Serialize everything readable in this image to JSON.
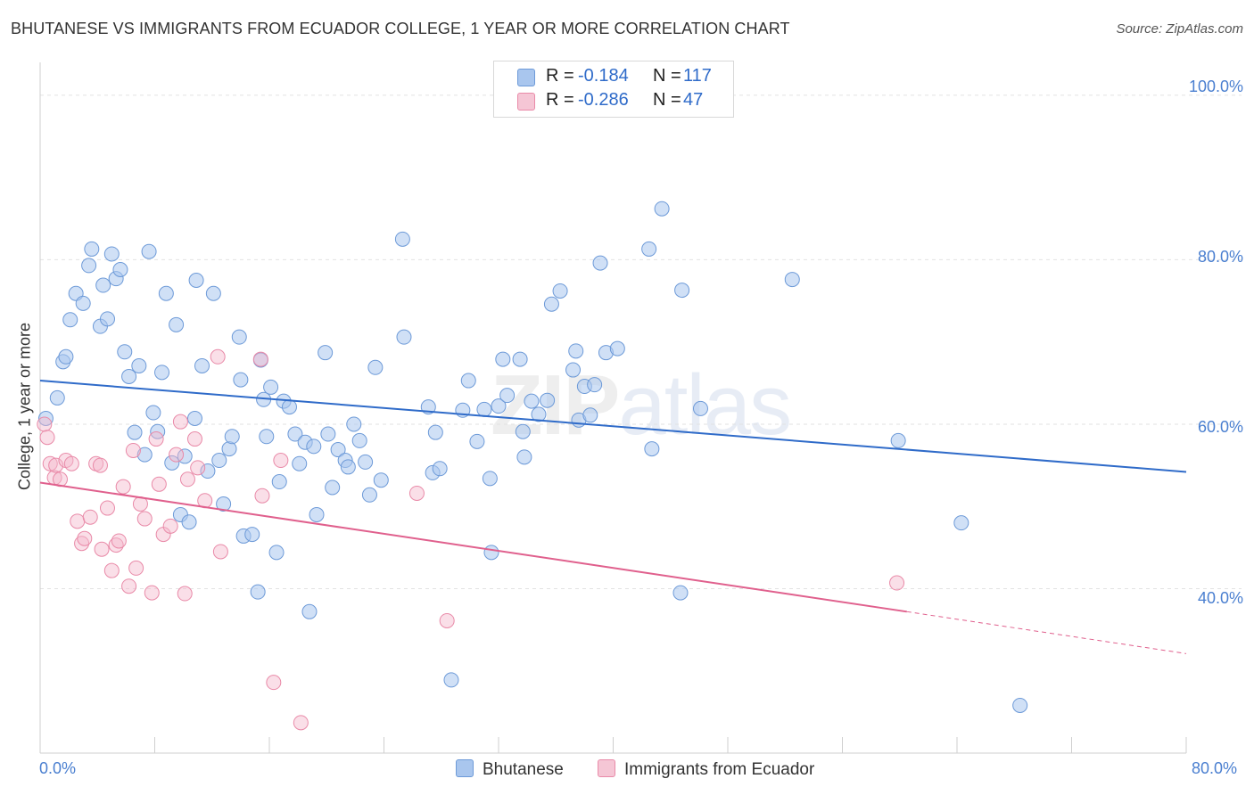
{
  "title": "BHUTANESE VS IMMIGRANTS FROM ECUADOR COLLEGE, 1 YEAR OR MORE CORRELATION CHART",
  "source": "Source: ZipAtlas.com",
  "watermark": {
    "zip": "ZIP",
    "atlas": "atlas"
  },
  "legend_top": {
    "rows": [
      {
        "r_label": "R =",
        "r_value": "-0.184",
        "n_label": "N =",
        "n_value": "117",
        "color": "#a9c6ee"
      },
      {
        "r_label": "R =",
        "r_value": "-0.286",
        "n_label": "N =",
        "n_value": "47",
        "color": "#f5b8cb"
      }
    ]
  },
  "legend_bottom": {
    "items": [
      {
        "label": "Bhutanese",
        "color": "#a9c6ee"
      },
      {
        "label": "Immigrants from Ecuador",
        "color": "#f5b8cb"
      }
    ]
  },
  "chart_data": {
    "type": "scatter",
    "title": "BHUTANESE VS IMMIGRANTS FROM ECUADOR COLLEGE, 1 YEAR OR MORE CORRELATION CHART",
    "xlabel": "",
    "ylabel": "College, 1 year or more",
    "xlim": [
      0,
      80
    ],
    "ylim": [
      20,
      104
    ],
    "x_tick_labels": [
      "0.0%",
      "80.0%"
    ],
    "y_ticks": [
      40,
      60,
      80,
      100
    ],
    "y_tick_labels": [
      "40.0%",
      "60.0%",
      "80.0%",
      "100.0%"
    ],
    "grid": true,
    "legend_position": "top-center",
    "colors": {
      "blue_fill": "#a9c6ee",
      "blue_stroke": "#6d9ad8",
      "blue_line": "#2f6bc9",
      "pink_fill": "#f5b8cb",
      "pink_stroke": "#e98aa8",
      "pink_line": "#e0608d"
    },
    "series": [
      {
        "name": "Bhutanese",
        "trend": {
          "x": [
            0,
            80
          ],
          "y": [
            65.3,
            54.2
          ]
        },
        "points": [
          [
            0.4,
            60.7
          ],
          [
            1.2,
            63.2
          ],
          [
            1.6,
            67.6
          ],
          [
            1.8,
            68.2
          ],
          [
            2.1,
            72.7
          ],
          [
            2.5,
            75.9
          ],
          [
            3.0,
            74.7
          ],
          [
            3.4,
            79.3
          ],
          [
            3.6,
            81.3
          ],
          [
            4.2,
            71.9
          ],
          [
            4.4,
            76.9
          ],
          [
            4.7,
            72.8
          ],
          [
            5.0,
            80.7
          ],
          [
            5.3,
            77.7
          ],
          [
            5.6,
            78.8
          ],
          [
            5.9,
            68.8
          ],
          [
            6.2,
            65.8
          ],
          [
            6.6,
            59.0
          ],
          [
            6.9,
            67.1
          ],
          [
            7.3,
            56.3
          ],
          [
            7.6,
            81.0
          ],
          [
            7.9,
            61.4
          ],
          [
            8.2,
            59.1
          ],
          [
            8.5,
            66.3
          ],
          [
            8.8,
            75.9
          ],
          [
            9.2,
            55.3
          ],
          [
            9.5,
            72.1
          ],
          [
            9.8,
            49.0
          ],
          [
            10.1,
            56.1
          ],
          [
            10.4,
            48.1
          ],
          [
            10.8,
            60.7
          ],
          [
            10.9,
            77.5
          ],
          [
            11.3,
            67.1
          ],
          [
            11.7,
            54.3
          ],
          [
            12.1,
            75.9
          ],
          [
            12.5,
            55.6
          ],
          [
            12.8,
            50.3
          ],
          [
            13.2,
            57.0
          ],
          [
            13.4,
            58.5
          ],
          [
            13.9,
            70.6
          ],
          [
            14.0,
            65.4
          ],
          [
            14.2,
            46.4
          ],
          [
            14.8,
            46.6
          ],
          [
            15.2,
            39.6
          ],
          [
            15.4,
            67.8
          ],
          [
            15.6,
            63.0
          ],
          [
            15.8,
            58.5
          ],
          [
            16.1,
            64.5
          ],
          [
            16.5,
            44.4
          ],
          [
            16.7,
            53.0
          ],
          [
            17.0,
            62.8
          ],
          [
            17.4,
            62.1
          ],
          [
            17.8,
            58.8
          ],
          [
            18.1,
            55.2
          ],
          [
            18.5,
            57.8
          ],
          [
            18.8,
            37.2
          ],
          [
            19.1,
            57.3
          ],
          [
            19.3,
            49.0
          ],
          [
            19.9,
            68.7
          ],
          [
            20.1,
            58.8
          ],
          [
            20.4,
            52.3
          ],
          [
            20.8,
            56.9
          ],
          [
            21.3,
            55.6
          ],
          [
            21.5,
            54.8
          ],
          [
            21.9,
            60.0
          ],
          [
            22.3,
            58.0
          ],
          [
            22.7,
            55.4
          ],
          [
            23.0,
            51.4
          ],
          [
            23.4,
            66.9
          ],
          [
            23.8,
            53.2
          ],
          [
            25.3,
            82.5
          ],
          [
            25.4,
            70.6
          ],
          [
            27.1,
            62.1
          ],
          [
            27.4,
            54.1
          ],
          [
            27.6,
            59.0
          ],
          [
            27.9,
            54.6
          ],
          [
            28.7,
            28.9
          ],
          [
            29.5,
            61.7
          ],
          [
            29.9,
            65.3
          ],
          [
            30.5,
            57.9
          ],
          [
            31.0,
            61.8
          ],
          [
            31.4,
            53.4
          ],
          [
            31.5,
            44.4
          ],
          [
            32.0,
            62.2
          ],
          [
            32.3,
            67.9
          ],
          [
            32.6,
            63.5
          ],
          [
            33.5,
            67.9
          ],
          [
            33.7,
            59.1
          ],
          [
            33.8,
            56.0
          ],
          [
            34.3,
            62.8
          ],
          [
            34.8,
            61.2
          ],
          [
            35.4,
            62.9
          ],
          [
            35.7,
            74.6
          ],
          [
            36.3,
            76.2
          ],
          [
            37.2,
            66.6
          ],
          [
            37.4,
            68.9
          ],
          [
            37.6,
            60.5
          ],
          [
            38.0,
            64.6
          ],
          [
            38.4,
            61.1
          ],
          [
            38.7,
            64.8
          ],
          [
            39.1,
            79.6
          ],
          [
            39.5,
            68.7
          ],
          [
            40.3,
            69.2
          ],
          [
            42.5,
            81.3
          ],
          [
            43.4,
            86.2
          ],
          [
            42.7,
            57.0
          ],
          [
            44.8,
            76.3
          ],
          [
            44.7,
            39.5
          ],
          [
            46.1,
            61.9
          ],
          [
            52.5,
            77.6
          ],
          [
            59.9,
            58.0
          ],
          [
            64.3,
            48.0
          ],
          [
            68.4,
            25.8
          ]
        ]
      },
      {
        "name": "Immigrants from Ecuador",
        "trend": {
          "x": [
            0,
            60.5
          ],
          "y": [
            52.9,
            37.2
          ]
        },
        "trend_dashed": {
          "x": [
            60.5,
            80
          ],
          "y": [
            37.2,
            32.1
          ]
        },
        "points": [
          [
            0.3,
            60.0
          ],
          [
            0.5,
            58.4
          ],
          [
            0.7,
            55.2
          ],
          [
            1.0,
            53.5
          ],
          [
            1.1,
            55.0
          ],
          [
            1.4,
            53.3
          ],
          [
            1.8,
            55.6
          ],
          [
            2.2,
            55.2
          ],
          [
            2.6,
            48.2
          ],
          [
            2.9,
            45.5
          ],
          [
            3.1,
            46.1
          ],
          [
            3.5,
            48.7
          ],
          [
            3.9,
            55.2
          ],
          [
            4.2,
            55.0
          ],
          [
            4.3,
            44.8
          ],
          [
            4.7,
            49.8
          ],
          [
            5.0,
            42.2
          ],
          [
            5.3,
            45.3
          ],
          [
            5.5,
            45.8
          ],
          [
            5.8,
            52.4
          ],
          [
            6.2,
            40.3
          ],
          [
            6.5,
            56.8
          ],
          [
            6.7,
            42.5
          ],
          [
            7.0,
            50.3
          ],
          [
            7.3,
            48.5
          ],
          [
            7.8,
            39.5
          ],
          [
            8.1,
            58.2
          ],
          [
            8.3,
            52.7
          ],
          [
            8.6,
            46.6
          ],
          [
            9.1,
            47.6
          ],
          [
            9.5,
            56.3
          ],
          [
            9.8,
            60.3
          ],
          [
            10.1,
            39.4
          ],
          [
            10.3,
            53.3
          ],
          [
            10.8,
            58.2
          ],
          [
            11.0,
            54.7
          ],
          [
            11.5,
            50.7
          ],
          [
            12.4,
            68.2
          ],
          [
            12.6,
            44.5
          ],
          [
            15.4,
            67.9
          ],
          [
            15.5,
            51.3
          ],
          [
            16.3,
            28.6
          ],
          [
            16.8,
            55.6
          ],
          [
            18.2,
            23.7
          ],
          [
            26.3,
            51.6
          ],
          [
            28.4,
            36.1
          ],
          [
            59.8,
            40.7
          ]
        ]
      }
    ]
  },
  "axis": {
    "ylabel": "College, 1 year or more",
    "x_min_label": "0.0%",
    "x_max_label": "80.0%",
    "y_labels": [
      "100.0%",
      "80.0%",
      "60.0%",
      "40.0%"
    ]
  }
}
